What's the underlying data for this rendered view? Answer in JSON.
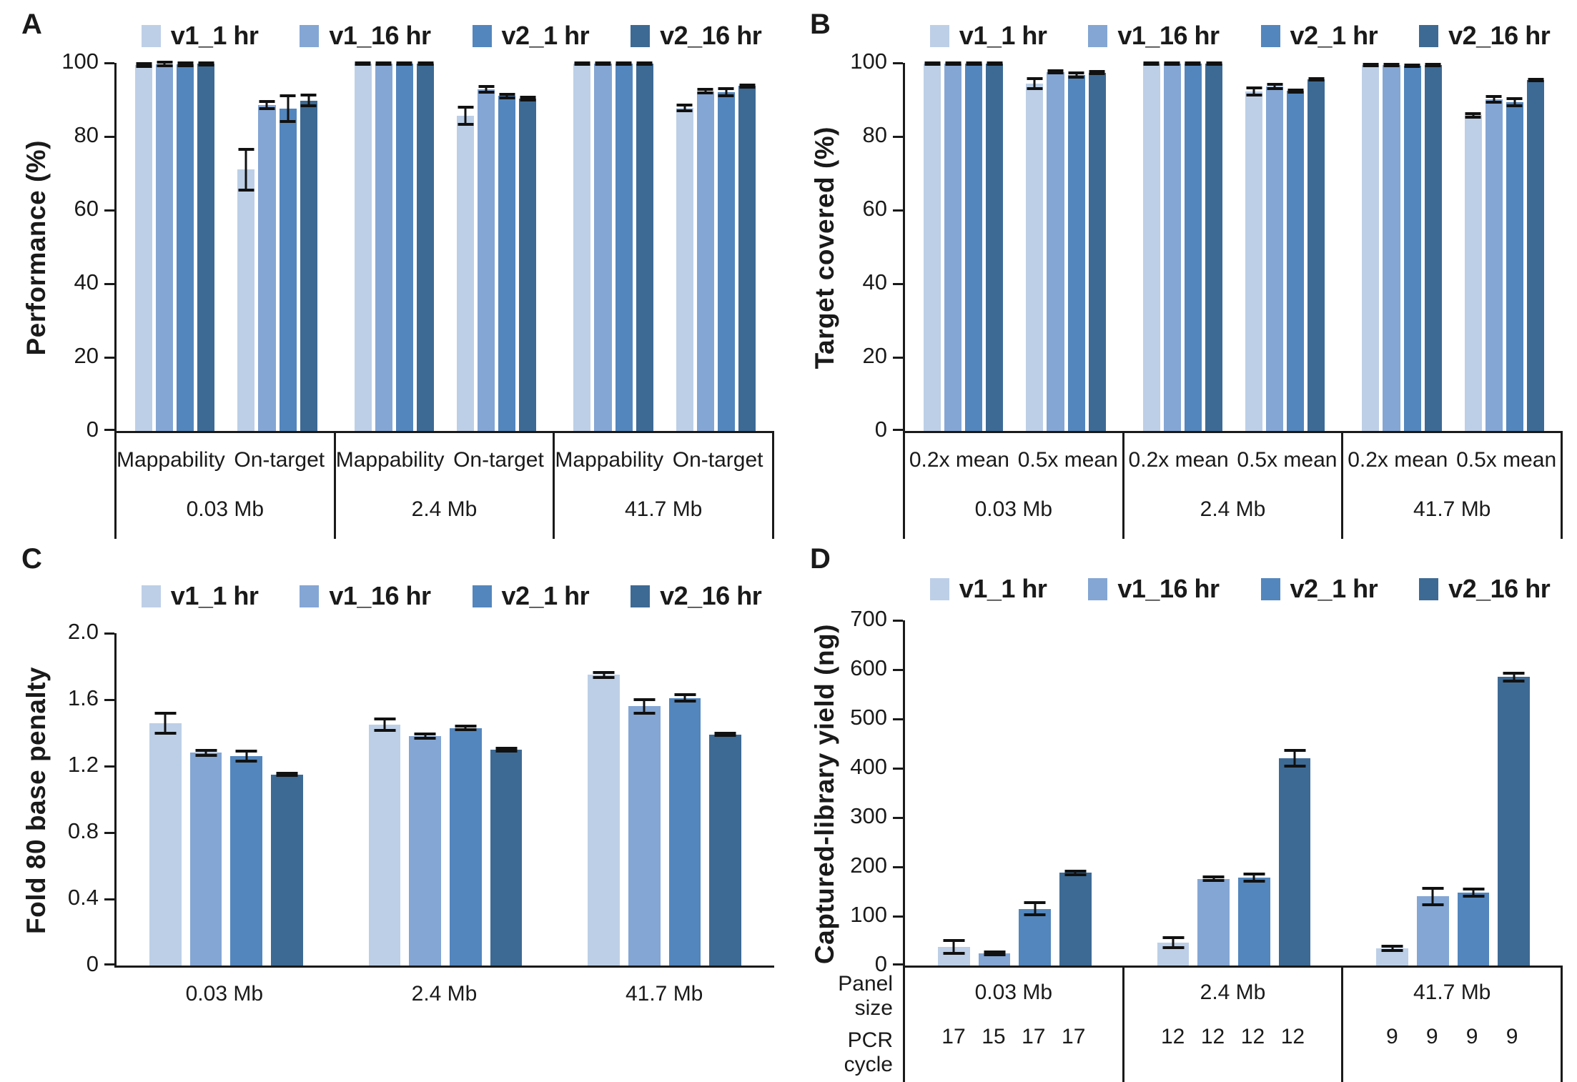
{
  "figure": {
    "background": "#ffffff",
    "axis_color": "#1a1a1a"
  },
  "legend": {
    "position": "top",
    "series": [
      {
        "label": "v1_1 hr",
        "color": "#bdcfe7"
      },
      {
        "label": "v1_16 hr",
        "color": "#84a6d4"
      },
      {
        "label": "v2_1 hr",
        "color": "#5386bd"
      },
      {
        "label": "v2_16 hr",
        "color": "#3d6a94"
      }
    ]
  },
  "chart_data": [
    {
      "panel_label": "A",
      "type": "bar",
      "title": "",
      "ylabel": "Performance (%)",
      "xlabel": "",
      "ylim": [
        0,
        100
      ],
      "ytick_values": [
        0,
        20,
        40,
        60,
        80,
        100
      ],
      "yticks": [
        "0",
        "20",
        "40",
        "60",
        "80",
        "100"
      ],
      "grid": false,
      "error_bars": true,
      "xaxis_style": "two-level-table",
      "series_names": [
        "v1_1 hr",
        "v1_16 hr",
        "v2_1 hr",
        "v2_16 hr"
      ],
      "groups": [
        {
          "label": "0.03 Mb",
          "subgroups": [
            {
              "label": "Mappability",
              "values": [
                99.5,
                99.7,
                99.7,
                99.8
              ],
              "errors": [
                0.4,
                0.5,
                0.4,
                0.3
              ]
            },
            {
              "label": "On-target",
              "values": [
                71.0,
                88.5,
                87.5,
                89.8
              ],
              "errors": [
                5.5,
                1.0,
                3.5,
                1.5
              ]
            }
          ]
        },
        {
          "label": "2.4 Mb",
          "subgroups": [
            {
              "label": "Mappability",
              "values": [
                99.9,
                99.9,
                99.9,
                99.9
              ],
              "errors": [
                0.1,
                0.1,
                0.1,
                0.1
              ]
            },
            {
              "label": "On-target",
              "values": [
                85.6,
                92.8,
                91.0,
                90.3
              ],
              "errors": [
                2.3,
                0.8,
                0.5,
                0.3
              ]
            }
          ]
        },
        {
          "label": "41.7 Mb",
          "subgroups": [
            {
              "label": "Mappability",
              "values": [
                99.9,
                99.9,
                99.9,
                99.9
              ],
              "errors": [
                0.1,
                0.1,
                0.1,
                0.1
              ]
            },
            {
              "label": "On-target",
              "values": [
                87.8,
                92.3,
                92.0,
                93.7
              ],
              "errors": [
                0.8,
                0.5,
                1.0,
                0.3
              ]
            }
          ]
        }
      ]
    },
    {
      "panel_label": "B",
      "type": "bar",
      "title": "",
      "ylabel": "Target covered (%)",
      "xlabel": "",
      "ylim": [
        0,
        100
      ],
      "ytick_values": [
        0,
        20,
        40,
        60,
        80,
        100
      ],
      "yticks": [
        "0",
        "20",
        "40",
        "60",
        "80",
        "100"
      ],
      "grid": false,
      "error_bars": true,
      "xaxis_style": "two-level-table",
      "series_names": [
        "v1_1 hr",
        "v1_16 hr",
        "v2_1 hr",
        "v2_16 hr"
      ],
      "groups": [
        {
          "label": "0.03 Mb",
          "subgroups": [
            {
              "label": "0.2x mean",
              "values": [
                99.9,
                99.9,
                99.9,
                99.9
              ],
              "errors": [
                0.1,
                0.1,
                0.1,
                0.1
              ]
            },
            {
              "label": "0.5x mean",
              "values": [
                94.4,
                97.5,
                96.7,
                97.3
              ],
              "errors": [
                1.4,
                0.3,
                0.6,
                0.3
              ]
            }
          ]
        },
        {
          "label": "2.4 Mb",
          "subgroups": [
            {
              "label": "0.2x mean",
              "values": [
                99.8,
                99.8,
                99.8,
                99.8
              ],
              "errors": [
                0.1,
                0.1,
                0.1,
                0.1
              ]
            },
            {
              "label": "0.5x mean",
              "values": [
                92.3,
                93.6,
                92.4,
                95.5
              ],
              "errors": [
                1.0,
                0.5,
                0.3,
                0.2
              ]
            }
          ]
        },
        {
          "label": "41.7 Mb",
          "subgroups": [
            {
              "label": "0.2x mean",
              "values": [
                99.5,
                99.5,
                99.3,
                99.5
              ],
              "errors": [
                0.2,
                0.2,
                0.2,
                0.2
              ]
            },
            {
              "label": "0.5x mean",
              "values": [
                85.8,
                90.1,
                89.3,
                95.3
              ],
              "errors": [
                0.5,
                0.8,
                0.9,
                0.2
              ]
            }
          ]
        }
      ]
    },
    {
      "panel_label": "C",
      "type": "bar",
      "title": "",
      "ylabel": "Fold 80 base penalty",
      "xlabel": "",
      "ylim": [
        0,
        2.0
      ],
      "ytick_values": [
        0,
        0.4,
        0.8,
        1.2,
        1.6,
        2.0
      ],
      "yticks": [
        "0",
        "0.4",
        "0.8",
        "1.2",
        "1.6",
        "2.0"
      ],
      "grid": false,
      "error_bars": true,
      "xaxis_style": "plain",
      "series_names": [
        "v1_1 hr",
        "v1_16 hr",
        "v2_1 hr",
        "v2_16 hr"
      ],
      "groups": [
        {
          "label": "0.03 Mb",
          "values": [
            1.46,
            1.28,
            1.26,
            1.15
          ],
          "errors": [
            0.06,
            0.015,
            0.03,
            0.006
          ]
        },
        {
          "label": "2.4 Mb",
          "values": [
            1.45,
            1.38,
            1.43,
            1.3
          ],
          "errors": [
            0.035,
            0.012,
            0.01,
            0.008
          ]
        },
        {
          "label": "41.7 Mb",
          "values": [
            1.75,
            1.56,
            1.61,
            1.39
          ],
          "errors": [
            0.015,
            0.04,
            0.02,
            0.006
          ]
        }
      ]
    },
    {
      "panel_label": "D",
      "type": "bar",
      "title": "",
      "ylabel": "Captured-library yield (ng)",
      "xlabel": "",
      "ylim": [
        0,
        700
      ],
      "ytick_values": [
        0,
        100,
        200,
        300,
        400,
        500,
        600,
        700
      ],
      "yticks": [
        "0",
        "100",
        "200",
        "300",
        "400",
        "500",
        "600",
        "700"
      ],
      "grid": false,
      "error_bars": true,
      "xaxis_style": "two-row-table",
      "row_labels": [
        "Panel size",
        "PCR cycle"
      ],
      "series_names": [
        "v1_1 hr",
        "v1_16 hr",
        "v2_1 hr",
        "v2_16 hr"
      ],
      "groups": [
        {
          "label": "0.03 Mb",
          "values": [
            38,
            25,
            115,
            188
          ],
          "errors": [
            13,
            3,
            12,
            4
          ],
          "pcr_cycles": [
            "17",
            "15",
            "17",
            "17"
          ]
        },
        {
          "label": "2.4 Mb",
          "values": [
            46,
            176,
            178,
            420
          ],
          "errors": [
            10,
            4,
            7,
            16
          ],
          "pcr_cycles": [
            "12",
            "12",
            "12",
            "12"
          ]
        },
        {
          "label": "41.7 Mb",
          "values": [
            35,
            140,
            148,
            585
          ],
          "errors": [
            4,
            17,
            7,
            8
          ],
          "pcr_cycles": [
            "9",
            "9",
            "9",
            "9"
          ]
        }
      ]
    }
  ]
}
